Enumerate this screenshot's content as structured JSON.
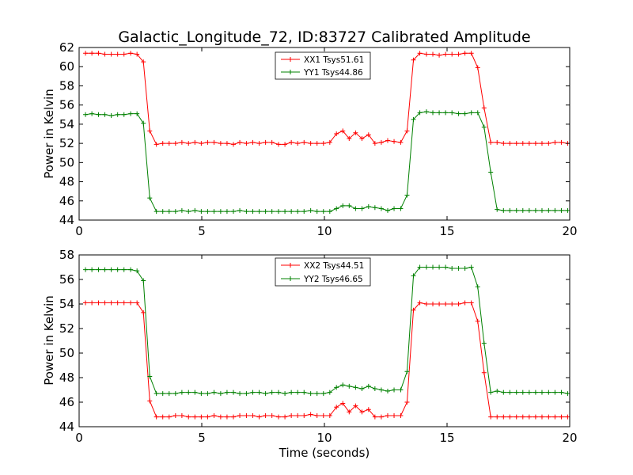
{
  "figure": {
    "title": "Galactic_Longitude_72, ID:83727 Calibrated Amplitude",
    "xlabel": "Time (seconds)"
  },
  "chart_data": [
    {
      "type": "line",
      "title": "Galactic_Longitude_72, ID:83727 Calibrated Amplitude",
      "xlabel": "",
      "ylabel": "Power in Kelvin",
      "xlim": [
        0,
        20
      ],
      "ylim": [
        44,
        62
      ],
      "xticks": [
        "0",
        "5",
        "10",
        "15",
        "20"
      ],
      "yticks": [
        "44",
        "46",
        "48",
        "50",
        "52",
        "54",
        "56",
        "58",
        "60",
        "62"
      ],
      "legend_position": "top-center",
      "grid": false,
      "x": [
        0.26,
        0.52,
        0.79,
        1.05,
        1.31,
        1.57,
        1.83,
        2.1,
        2.36,
        2.62,
        2.88,
        3.15,
        3.41,
        3.67,
        3.93,
        4.19,
        4.46,
        4.72,
        4.98,
        5.24,
        5.5,
        5.77,
        6.03,
        6.29,
        6.55,
        6.82,
        7.08,
        7.34,
        7.6,
        7.86,
        8.13,
        8.39,
        8.65,
        8.91,
        9.17,
        9.44,
        9.7,
        9.96,
        10.22,
        10.49,
        10.75,
        11.01,
        11.27,
        11.53,
        11.8,
        12.06,
        12.32,
        12.58,
        12.84,
        13.11,
        13.37,
        13.63,
        13.89,
        14.16,
        14.42,
        14.68,
        14.94,
        15.2,
        15.47,
        15.73,
        15.99,
        16.25,
        16.51,
        16.78,
        17.04,
        17.3,
        17.56,
        17.83,
        18.09,
        18.35,
        18.61,
        18.87,
        19.14,
        19.4,
        19.66,
        19.92
      ],
      "series": [
        {
          "name": "XX1 Tsys51.61",
          "color": "#ff0000",
          "values": [
            61.4,
            61.4,
            61.4,
            61.3,
            61.3,
            61.3,
            61.3,
            61.4,
            61.3,
            60.5,
            53.3,
            51.9,
            52.0,
            52.0,
            52.0,
            52.1,
            52.0,
            52.1,
            52.0,
            52.1,
            52.1,
            52.0,
            52.0,
            51.9,
            52.1,
            52.0,
            52.1,
            52.0,
            52.1,
            52.1,
            51.9,
            51.9,
            52.1,
            52.0,
            52.1,
            52.0,
            52.0,
            52.0,
            52.1,
            53.0,
            53.3,
            52.5,
            53.1,
            52.5,
            52.9,
            52.0,
            52.1,
            52.3,
            52.2,
            52.1,
            53.3,
            60.7,
            61.4,
            61.3,
            61.3,
            61.2,
            61.3,
            61.3,
            61.3,
            61.4,
            61.4,
            59.9,
            55.7,
            52.1,
            52.1,
            52.0,
            52.0,
            52.0,
            52.0,
            52.0,
            52.0,
            52.0,
            52.0,
            52.1,
            52.1,
            52.0
          ]
        },
        {
          "name": "YY1 Tsys44.86",
          "color": "#008000",
          "values": [
            55.0,
            55.1,
            55.0,
            55.0,
            54.9,
            55.0,
            55.0,
            55.1,
            55.1,
            54.1,
            46.3,
            44.9,
            44.9,
            44.9,
            44.9,
            45.0,
            44.9,
            45.0,
            44.9,
            44.9,
            44.9,
            44.9,
            44.9,
            44.9,
            45.0,
            44.9,
            44.9,
            44.9,
            44.9,
            44.9,
            44.9,
            44.9,
            44.9,
            44.9,
            44.9,
            45.0,
            44.9,
            44.9,
            44.9,
            45.2,
            45.5,
            45.5,
            45.2,
            45.2,
            45.4,
            45.3,
            45.2,
            45.0,
            45.2,
            45.2,
            46.6,
            54.5,
            55.2,
            55.3,
            55.2,
            55.2,
            55.2,
            55.2,
            55.1,
            55.1,
            55.2,
            55.2,
            53.7,
            49.0,
            45.1,
            45.0,
            45.0,
            45.0,
            45.0,
            45.0,
            45.0,
            45.0,
            45.0,
            45.0,
            45.0,
            45.0
          ]
        }
      ]
    },
    {
      "type": "line",
      "title": "",
      "xlabel": "Time (seconds)",
      "ylabel": "Power in Kelvin",
      "xlim": [
        0,
        20
      ],
      "ylim": [
        44,
        58
      ],
      "xticks": [
        "0",
        "5",
        "10",
        "15",
        "20"
      ],
      "yticks": [
        "44",
        "46",
        "48",
        "50",
        "52",
        "54",
        "56",
        "58"
      ],
      "legend_position": "top-center",
      "grid": false,
      "x": [
        0.26,
        0.52,
        0.79,
        1.05,
        1.31,
        1.57,
        1.83,
        2.1,
        2.36,
        2.62,
        2.88,
        3.15,
        3.41,
        3.67,
        3.93,
        4.19,
        4.46,
        4.72,
        4.98,
        5.24,
        5.5,
        5.77,
        6.03,
        6.29,
        6.55,
        6.82,
        7.08,
        7.34,
        7.6,
        7.86,
        8.13,
        8.39,
        8.65,
        8.91,
        9.17,
        9.44,
        9.7,
        9.96,
        10.22,
        10.49,
        10.75,
        11.01,
        11.27,
        11.53,
        11.8,
        12.06,
        12.32,
        12.58,
        12.84,
        13.11,
        13.37,
        13.63,
        13.89,
        14.16,
        14.42,
        14.68,
        14.94,
        15.2,
        15.47,
        15.73,
        15.99,
        16.25,
        16.51,
        16.78,
        17.04,
        17.3,
        17.56,
        17.83,
        18.09,
        18.35,
        18.61,
        18.87,
        19.14,
        19.4,
        19.66,
        19.92
      ],
      "series": [
        {
          "name": "XX2 Tsys44.51",
          "color": "#ff0000",
          "values": [
            54.1,
            54.1,
            54.1,
            54.1,
            54.1,
            54.1,
            54.1,
            54.1,
            54.1,
            53.3,
            46.1,
            44.8,
            44.8,
            44.8,
            44.9,
            44.9,
            44.8,
            44.8,
            44.8,
            44.8,
            44.9,
            44.8,
            44.8,
            44.8,
            44.9,
            44.9,
            44.9,
            44.8,
            44.9,
            44.9,
            44.8,
            44.8,
            44.9,
            44.9,
            44.9,
            45.0,
            44.9,
            44.9,
            44.9,
            45.6,
            45.9,
            45.2,
            45.7,
            45.2,
            45.4,
            44.8,
            44.8,
            44.9,
            44.9,
            44.9,
            46.0,
            53.5,
            54.1,
            54.0,
            54.0,
            54.0,
            54.0,
            54.0,
            54.0,
            54.1,
            54.1,
            52.6,
            48.4,
            44.8,
            44.8,
            44.8,
            44.8,
            44.8,
            44.8,
            44.8,
            44.8,
            44.8,
            44.8,
            44.8,
            44.8,
            44.8
          ]
        },
        {
          "name": "YY2 Tsys46.65",
          "color": "#008000",
          "values": [
            56.8,
            56.8,
            56.8,
            56.8,
            56.8,
            56.8,
            56.8,
            56.8,
            56.7,
            55.9,
            48.1,
            46.7,
            46.7,
            46.7,
            46.7,
            46.8,
            46.8,
            46.8,
            46.7,
            46.7,
            46.8,
            46.7,
            46.8,
            46.8,
            46.7,
            46.7,
            46.8,
            46.8,
            46.7,
            46.8,
            46.8,
            46.7,
            46.8,
            46.8,
            46.8,
            46.7,
            46.7,
            46.7,
            46.8,
            47.2,
            47.4,
            47.3,
            47.2,
            47.1,
            47.3,
            47.1,
            47.0,
            46.9,
            47.0,
            47.0,
            48.5,
            56.3,
            57.0,
            57.0,
            57.0,
            57.0,
            57.0,
            56.9,
            56.9,
            56.9,
            57.0,
            55.4,
            50.8,
            46.8,
            46.9,
            46.8,
            46.8,
            46.8,
            46.8,
            46.8,
            46.8,
            46.8,
            46.8,
            46.8,
            46.8,
            46.7
          ]
        }
      ]
    }
  ]
}
